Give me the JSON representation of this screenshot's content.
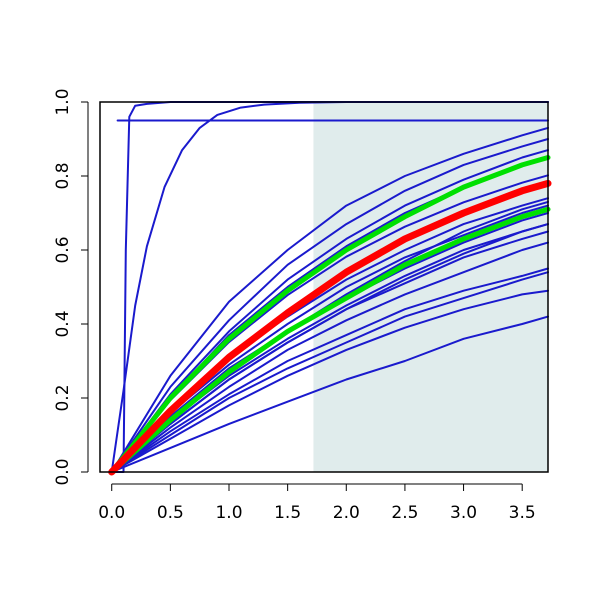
{
  "chart_data": {
    "type": "line",
    "title": "",
    "xlabel": "",
    "ylabel": "",
    "xlim": [
      -0.1,
      3.72
    ],
    "ylim": [
      0,
      1.0
    ],
    "x_ticks": [
      0.0,
      0.5,
      1.0,
      1.5,
      2.0,
      2.5,
      3.0,
      3.5
    ],
    "x_tick_labels": [
      "0.0",
      "0.5",
      "1.0",
      "1.5",
      "2.0",
      "2.5",
      "3.0",
      "3.5"
    ],
    "y_ticks": [
      0.0,
      0.2,
      0.4,
      0.6,
      0.8,
      1.0
    ],
    "y_tick_labels": [
      "0.0",
      "0.2",
      "0.4",
      "0.6",
      "0.8",
      "1.0"
    ],
    "grid": false,
    "legend": "none",
    "shaded_region": {
      "x_from": 1.72,
      "x_to": 3.72,
      "color": "#e0ecec"
    },
    "colors": {
      "blue": "#1a1acd",
      "red": "#ff0000",
      "green": "#00e000"
    },
    "series": [
      {
        "color": "blue",
        "width": 2,
        "x": [
          0,
          0.1,
          0.12,
          0.15,
          0.2,
          0.3,
          0.5,
          1.0,
          3.72
        ],
        "y": [
          0,
          0,
          0.6,
          0.96,
          0.99,
          0.995,
          1.0,
          1.0,
          1.0
        ]
      },
      {
        "color": "blue",
        "width": 2,
        "x": [
          0,
          0.1,
          0.2,
          0.3,
          0.45,
          0.6,
          0.75,
          0.9,
          1.1,
          1.3,
          1.6,
          2.0,
          3.72
        ],
        "y": [
          0,
          0.22,
          0.45,
          0.61,
          0.77,
          0.87,
          0.93,
          0.965,
          0.985,
          0.993,
          0.998,
          1.0,
          1.0
        ]
      },
      {
        "color": "blue",
        "width": 2,
        "x": [
          0.05,
          3.72
        ],
        "y": [
          0.95,
          0.95
        ]
      },
      {
        "color": "blue",
        "width": 2,
        "x": [
          0,
          0.5,
          1.0,
          1.5,
          2.0,
          2.5,
          3.0,
          3.5,
          3.72
        ],
        "y": [
          0,
          0.194,
          0.351,
          0.478,
          0.582,
          0.663,
          0.729,
          0.782,
          0.802
        ]
      },
      {
        "color": "blue",
        "width": 2,
        "x": [
          0,
          0.5,
          1.0,
          1.5,
          2.0,
          2.5,
          3.0,
          3.5,
          3.72
        ],
        "y": [
          0,
          0.2,
          0.37,
          0.5,
          0.61,
          0.7,
          0.77,
          0.83,
          0.85
        ]
      },
      {
        "color": "blue",
        "width": 2,
        "x": [
          0,
          0.5,
          1.0,
          1.5,
          2.0,
          2.5,
          3.0,
          3.5,
          3.72
        ],
        "y": [
          0,
          0.21,
          0.38,
          0.52,
          0.63,
          0.72,
          0.79,
          0.85,
          0.87
        ]
      },
      {
        "color": "blue",
        "width": 2,
        "x": [
          0,
          0.5,
          1.0,
          1.5,
          2.0,
          2.5,
          3.0,
          3.5,
          3.72
        ],
        "y": [
          0,
          0.23,
          0.41,
          0.56,
          0.67,
          0.76,
          0.83,
          0.88,
          0.9
        ]
      },
      {
        "color": "blue",
        "width": 2,
        "x": [
          0,
          0.5,
          1.0,
          1.5,
          2.0,
          2.5,
          3.0,
          3.5,
          3.72
        ],
        "y": [
          0,
          0.26,
          0.46,
          0.6,
          0.72,
          0.8,
          0.86,
          0.91,
          0.93
        ]
      },
      {
        "color": "blue",
        "width": 2,
        "x": [
          0,
          0.5,
          1.0,
          1.5,
          2.0,
          2.5,
          3.0,
          3.5,
          3.72
        ],
        "y": [
          0,
          0.17,
          0.31,
          0.42,
          0.52,
          0.6,
          0.67,
          0.72,
          0.74
        ]
      },
      {
        "color": "blue",
        "width": 2,
        "x": [
          0,
          0.5,
          1.0,
          1.5,
          2.0,
          2.5,
          3.0,
          3.5,
          3.72
        ],
        "y": [
          0,
          0.16,
          0.29,
          0.4,
          0.5,
          0.58,
          0.64,
          0.7,
          0.72
        ]
      },
      {
        "color": "blue",
        "width": 2,
        "x": [
          0,
          0.5,
          1.0,
          1.5,
          2.0,
          2.5,
          3.0,
          3.5,
          3.72
        ],
        "y": [
          0,
          0.15,
          0.28,
          0.38,
          0.47,
          0.55,
          0.62,
          0.68,
          0.7
        ]
      },
      {
        "color": "blue",
        "width": 2,
        "x": [
          0,
          0.5,
          1.0,
          1.5,
          2.0,
          2.5,
          3.0,
          3.5,
          3.72
        ],
        "y": [
          0,
          0.14,
          0.26,
          0.36,
          0.45,
          0.53,
          0.6,
          0.65,
          0.67
        ]
      },
      {
        "color": "blue",
        "width": 2,
        "x": [
          0,
          0.5,
          1.0,
          1.5,
          2.0,
          2.5,
          3.0,
          3.5,
          3.72
        ],
        "y": [
          0,
          0.13,
          0.25,
          0.35,
          0.44,
          0.51,
          0.58,
          0.63,
          0.65
        ]
      },
      {
        "color": "blue",
        "width": 2,
        "x": [
          0,
          0.5,
          1.0,
          1.5,
          2.0,
          2.5,
          3.0,
          3.5,
          3.72
        ],
        "y": [
          0,
          0.12,
          0.23,
          0.33,
          0.41,
          0.48,
          0.54,
          0.6,
          0.62
        ]
      },
      {
        "color": "blue",
        "width": 2,
        "x": [
          0,
          0.5,
          1.0,
          1.5,
          2.0,
          2.5,
          3.0,
          3.5,
          3.72
        ],
        "y": [
          0,
          0.11,
          0.21,
          0.3,
          0.37,
          0.44,
          0.49,
          0.53,
          0.55
        ]
      },
      {
        "color": "blue",
        "width": 2,
        "x": [
          0,
          0.5,
          1.0,
          1.5,
          2.0,
          2.5,
          3.0,
          3.5,
          3.72
        ],
        "y": [
          0,
          0.1,
          0.2,
          0.28,
          0.35,
          0.42,
          0.47,
          0.52,
          0.54
        ]
      },
      {
        "color": "blue",
        "width": 2,
        "x": [
          0,
          0.5,
          1.0,
          1.5,
          2.0,
          2.5,
          3.0,
          3.5,
          3.72
        ],
        "y": [
          0,
          0.09,
          0.18,
          0.26,
          0.33,
          0.39,
          0.44,
          0.48,
          0.49
        ]
      },
      {
        "color": "blue",
        "width": 2,
        "x": [
          0,
          0.5,
          1.0,
          1.5,
          2.0,
          2.5,
          3.0,
          3.5,
          3.72
        ],
        "y": [
          0,
          0.065,
          0.13,
          0.19,
          0.25,
          0.3,
          0.36,
          0.4,
          0.42
        ]
      },
      {
        "color": "blue",
        "width": 2,
        "x": [
          0,
          0.5,
          1.0,
          1.5,
          2.0,
          2.5,
          3.0,
          3.5,
          3.72
        ],
        "y": [
          0,
          0.13,
          0.25,
          0.35,
          0.44,
          0.52,
          0.59,
          0.65,
          0.67
        ]
      },
      {
        "color": "blue",
        "width": 2,
        "x": [
          0,
          0.5,
          1.0,
          1.5,
          2.0,
          2.5,
          3.0,
          3.5,
          3.72
        ],
        "y": [
          0,
          0.14,
          0.27,
          0.38,
          0.48,
          0.57,
          0.65,
          0.71,
          0.73
        ]
      },
      {
        "color": "green",
        "width": 5,
        "x": [
          0,
          0.5,
          1.0,
          1.5,
          2.0,
          2.5,
          3.0,
          3.5,
          3.72
        ],
        "y": [
          0,
          0.2,
          0.36,
          0.49,
          0.6,
          0.69,
          0.77,
          0.83,
          0.85
        ]
      },
      {
        "color": "green",
        "width": 5,
        "x": [
          0,
          0.5,
          1.0,
          1.5,
          2.0,
          2.5,
          3.0,
          3.5,
          3.72
        ],
        "y": [
          0,
          0.14,
          0.27,
          0.38,
          0.47,
          0.56,
          0.63,
          0.69,
          0.71
        ]
      },
      {
        "color": "red",
        "width": 7,
        "x": [
          0,
          0.5,
          1.0,
          1.5,
          2.0,
          2.5,
          3.0,
          3.5,
          3.72
        ],
        "y": [
          0,
          0.165,
          0.31,
          0.43,
          0.54,
          0.63,
          0.7,
          0.76,
          0.78
        ]
      }
    ]
  }
}
